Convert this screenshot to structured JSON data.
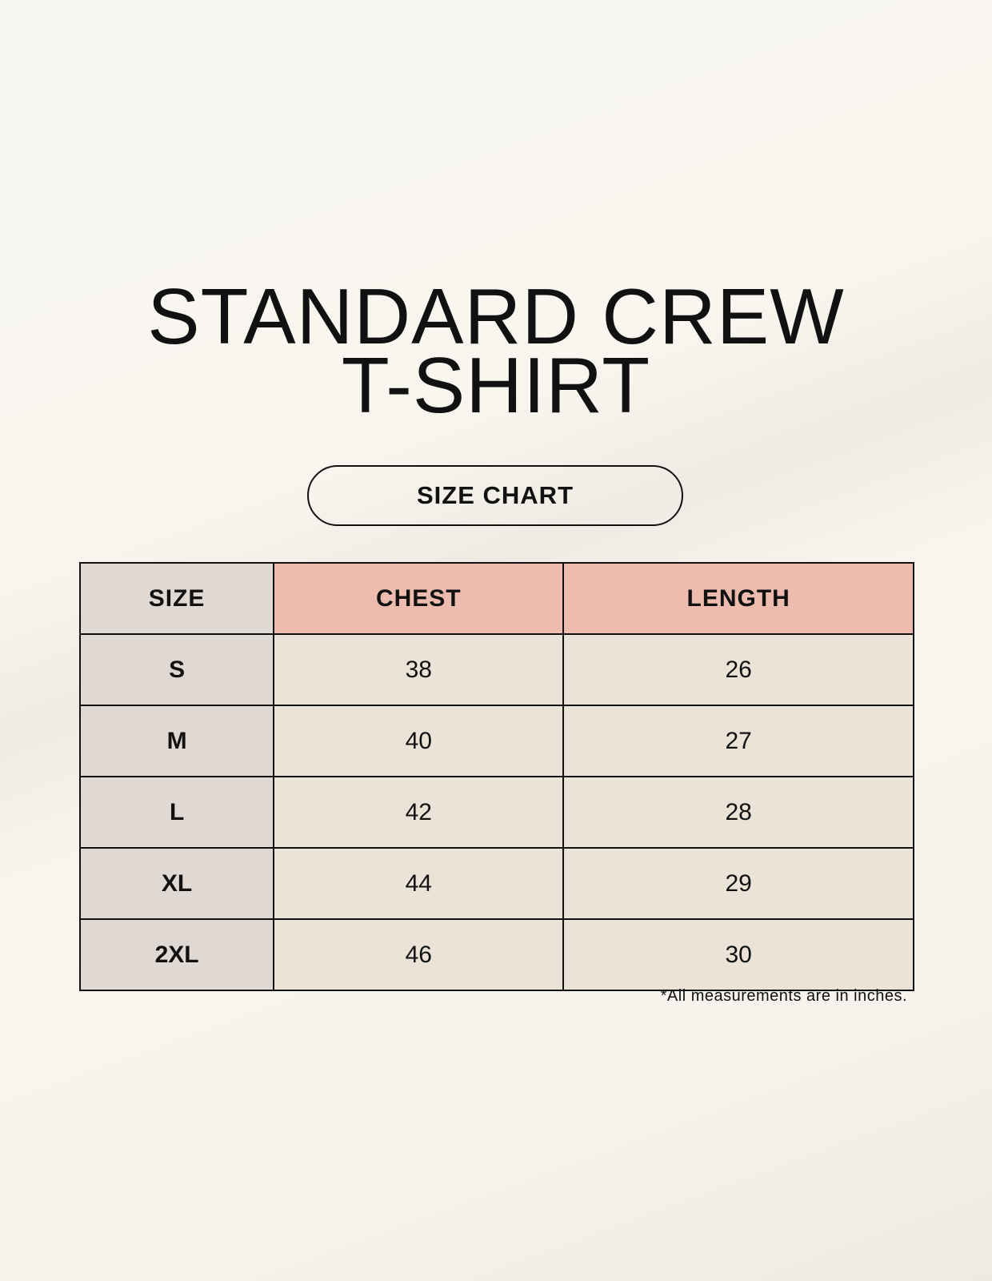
{
  "title": {
    "line1": "STANDARD CREW",
    "line2": "T-SHIRT"
  },
  "badge": "SIZE CHART",
  "table": {
    "headers": [
      "SIZE",
      "CHEST",
      "LENGTH"
    ],
    "rows": [
      {
        "size": "S",
        "chest": "38",
        "length": "26"
      },
      {
        "size": "M",
        "chest": "40",
        "length": "27"
      },
      {
        "size": "L",
        "chest": "42",
        "length": "28"
      },
      {
        "size": "XL",
        "chest": "44",
        "length": "29"
      },
      {
        "size": "2XL",
        "chest": "46",
        "length": "30"
      }
    ]
  },
  "note": "*All measurements are in inches.",
  "colors": {
    "size_column": "#e0d9d3",
    "measure_header": "#edbcae",
    "value_cells": "#ebe3d8"
  }
}
